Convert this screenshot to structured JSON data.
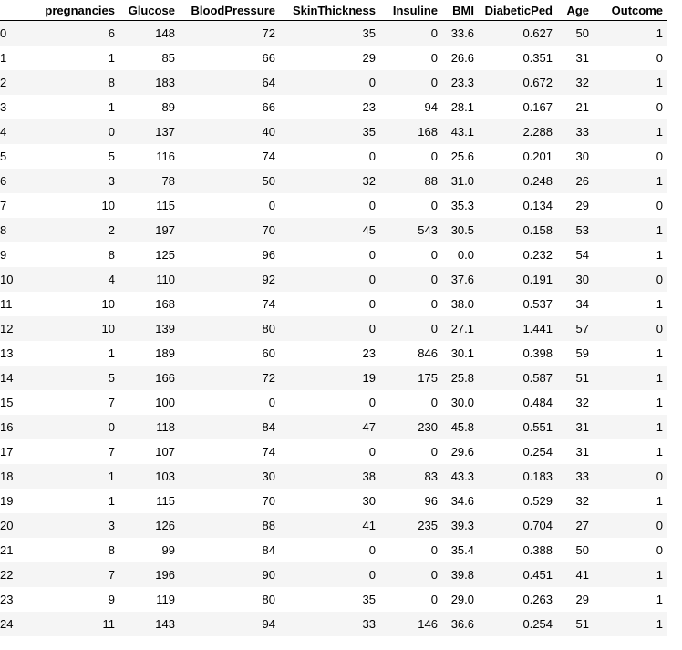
{
  "table": {
    "columns": [
      "",
      "pregnancies",
      "Glucose",
      "BloodPressure",
      "SkinThickness",
      "Insuline",
      "BMI",
      "DiabeticPed",
      "Age",
      "Outcome"
    ],
    "rows": [
      [
        "0",
        "6",
        "148",
        "72",
        "35",
        "0",
        "33.6",
        "0.627",
        "50",
        "1"
      ],
      [
        "1",
        "1",
        "85",
        "66",
        "29",
        "0",
        "26.6",
        "0.351",
        "31",
        "0"
      ],
      [
        "2",
        "8",
        "183",
        "64",
        "0",
        "0",
        "23.3",
        "0.672",
        "32",
        "1"
      ],
      [
        "3",
        "1",
        "89",
        "66",
        "23",
        "94",
        "28.1",
        "0.167",
        "21",
        "0"
      ],
      [
        "4",
        "0",
        "137",
        "40",
        "35",
        "168",
        "43.1",
        "2.288",
        "33",
        "1"
      ],
      [
        "5",
        "5",
        "116",
        "74",
        "0",
        "0",
        "25.6",
        "0.201",
        "30",
        "0"
      ],
      [
        "6",
        "3",
        "78",
        "50",
        "32",
        "88",
        "31.0",
        "0.248",
        "26",
        "1"
      ],
      [
        "7",
        "10",
        "115",
        "0",
        "0",
        "0",
        "35.3",
        "0.134",
        "29",
        "0"
      ],
      [
        "8",
        "2",
        "197",
        "70",
        "45",
        "543",
        "30.5",
        "0.158",
        "53",
        "1"
      ],
      [
        "9",
        "8",
        "125",
        "96",
        "0",
        "0",
        "0.0",
        "0.232",
        "54",
        "1"
      ],
      [
        "10",
        "4",
        "110",
        "92",
        "0",
        "0",
        "37.6",
        "0.191",
        "30",
        "0"
      ],
      [
        "11",
        "10",
        "168",
        "74",
        "0",
        "0",
        "38.0",
        "0.537",
        "34",
        "1"
      ],
      [
        "12",
        "10",
        "139",
        "80",
        "0",
        "0",
        "27.1",
        "1.441",
        "57",
        "0"
      ],
      [
        "13",
        "1",
        "189",
        "60",
        "23",
        "846",
        "30.1",
        "0.398",
        "59",
        "1"
      ],
      [
        "14",
        "5",
        "166",
        "72",
        "19",
        "175",
        "25.8",
        "0.587",
        "51",
        "1"
      ],
      [
        "15",
        "7",
        "100",
        "0",
        "0",
        "0",
        "30.0",
        "0.484",
        "32",
        "1"
      ],
      [
        "16",
        "0",
        "118",
        "84",
        "47",
        "230",
        "45.8",
        "0.551",
        "31",
        "1"
      ],
      [
        "17",
        "7",
        "107",
        "74",
        "0",
        "0",
        "29.6",
        "0.254",
        "31",
        "1"
      ],
      [
        "18",
        "1",
        "103",
        "30",
        "38",
        "83",
        "43.3",
        "0.183",
        "33",
        "0"
      ],
      [
        "19",
        "1",
        "115",
        "70",
        "30",
        "96",
        "34.6",
        "0.529",
        "32",
        "1"
      ],
      [
        "20",
        "3",
        "126",
        "88",
        "41",
        "235",
        "39.3",
        "0.704",
        "27",
        "0"
      ],
      [
        "21",
        "8",
        "99",
        "84",
        "0",
        "0",
        "35.4",
        "0.388",
        "50",
        "0"
      ],
      [
        "22",
        "7",
        "196",
        "90",
        "0",
        "0",
        "39.8",
        "0.451",
        "41",
        "1"
      ],
      [
        "23",
        "9",
        "119",
        "80",
        "35",
        "0",
        "29.0",
        "0.263",
        "29",
        "1"
      ],
      [
        "24",
        "11",
        "143",
        "94",
        "33",
        "146",
        "36.6",
        "0.254",
        "51",
        "1"
      ]
    ]
  }
}
